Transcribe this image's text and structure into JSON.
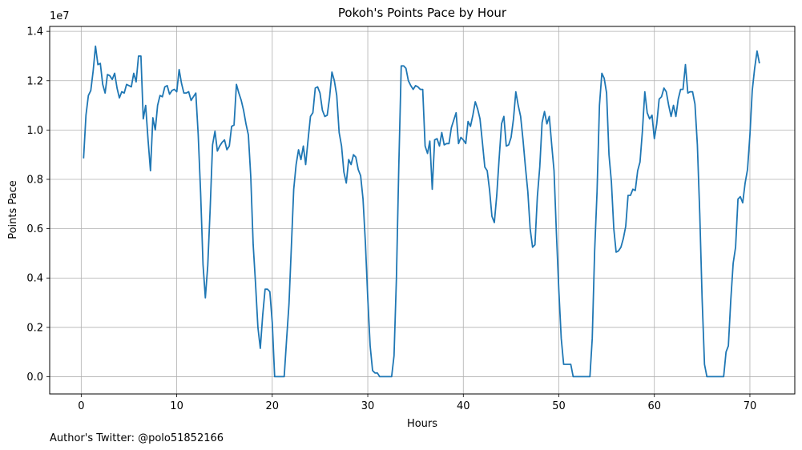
{
  "chart_data": {
    "type": "line",
    "title": "Pokoh's Points Pace by Hour",
    "xlabel": "Hours",
    "ylabel": "Points Pace",
    "y_offset_label": "1e7",
    "xlim": [
      -3.3,
      74.7
    ],
    "ylim": [
      -0.7,
      14.2
    ],
    "y_units": "1e7",
    "xticks": [
      0,
      10,
      20,
      30,
      40,
      50,
      60,
      70
    ],
    "yticks": [
      0.0,
      0.2,
      0.4,
      0.6,
      0.8,
      1.0,
      1.2,
      1.4
    ],
    "ytick_labels": [
      "0.0",
      "0.2",
      "0.4",
      "0.6",
      "0.8",
      "1.0",
      "1.2",
      "1.4"
    ],
    "grid": true,
    "series": [
      {
        "color": "#1f77b4",
        "points": [
          [
            0.25,
            8.85
          ],
          [
            0.5,
            10.6
          ],
          [
            0.75,
            11.4
          ],
          [
            1.0,
            11.6
          ],
          [
            1.25,
            12.4
          ],
          [
            1.5,
            13.4
          ],
          [
            1.75,
            12.65
          ],
          [
            2.0,
            12.7
          ],
          [
            2.25,
            11.85
          ],
          [
            2.5,
            11.5
          ],
          [
            2.75,
            12.25
          ],
          [
            3.0,
            12.2
          ],
          [
            3.25,
            12.05
          ],
          [
            3.5,
            12.3
          ],
          [
            3.75,
            11.7
          ],
          [
            4.0,
            11.3
          ],
          [
            4.25,
            11.55
          ],
          [
            4.5,
            11.5
          ],
          [
            4.75,
            11.85
          ],
          [
            5.0,
            11.8
          ],
          [
            5.25,
            11.75
          ],
          [
            5.5,
            12.3
          ],
          [
            5.75,
            11.95
          ],
          [
            6.0,
            13.0
          ],
          [
            6.25,
            13.0
          ],
          [
            6.5,
            10.45
          ],
          [
            6.75,
            11.0
          ],
          [
            7.0,
            9.6
          ],
          [
            7.25,
            8.35
          ],
          [
            7.5,
            10.5
          ],
          [
            7.75,
            10.0
          ],
          [
            8.0,
            11.0
          ],
          [
            8.25,
            11.4
          ],
          [
            8.5,
            11.35
          ],
          [
            8.75,
            11.75
          ],
          [
            9.0,
            11.8
          ],
          [
            9.25,
            11.45
          ],
          [
            9.5,
            11.6
          ],
          [
            9.75,
            11.65
          ],
          [
            10.0,
            11.55
          ],
          [
            10.25,
            12.45
          ],
          [
            10.5,
            11.9
          ],
          [
            10.75,
            11.5
          ],
          [
            11.0,
            11.5
          ],
          [
            11.25,
            11.55
          ],
          [
            11.5,
            11.2
          ],
          [
            11.75,
            11.35
          ],
          [
            12.0,
            11.5
          ],
          [
            12.25,
            9.8
          ],
          [
            12.5,
            7.45
          ],
          [
            12.75,
            4.55
          ],
          [
            13.0,
            3.2
          ],
          [
            13.25,
            4.5
          ],
          [
            13.5,
            6.8
          ],
          [
            13.75,
            9.4
          ],
          [
            14.0,
            9.95
          ],
          [
            14.25,
            9.15
          ],
          [
            14.5,
            9.35
          ],
          [
            14.75,
            9.5
          ],
          [
            15.0,
            9.6
          ],
          [
            15.25,
            9.2
          ],
          [
            15.5,
            9.35
          ],
          [
            15.75,
            10.15
          ],
          [
            16.0,
            10.2
          ],
          [
            16.25,
            11.85
          ],
          [
            16.5,
            11.5
          ],
          [
            16.75,
            11.2
          ],
          [
            17.0,
            10.8
          ],
          [
            17.25,
            10.25
          ],
          [
            17.5,
            9.8
          ],
          [
            17.75,
            8.1
          ],
          [
            18.0,
            5.35
          ],
          [
            18.25,
            3.8
          ],
          [
            18.5,
            2.0
          ],
          [
            18.75,
            1.15
          ],
          [
            19.0,
            2.5
          ],
          [
            19.25,
            3.55
          ],
          [
            19.5,
            3.55
          ],
          [
            19.75,
            3.45
          ],
          [
            20.0,
            2.2
          ],
          [
            20.25,
            0.0
          ],
          [
            20.5,
            0.0
          ],
          [
            20.75,
            0.0
          ],
          [
            21.0,
            0.0
          ],
          [
            21.25,
            0.0
          ],
          [
            21.5,
            1.5
          ],
          [
            21.75,
            2.95
          ],
          [
            22.0,
            5.3
          ],
          [
            22.25,
            7.6
          ],
          [
            22.5,
            8.6
          ],
          [
            22.75,
            9.2
          ],
          [
            23.0,
            8.8
          ],
          [
            23.25,
            9.35
          ],
          [
            23.5,
            8.6
          ],
          [
            23.75,
            9.6
          ],
          [
            24.0,
            10.55
          ],
          [
            24.25,
            10.7
          ],
          [
            24.5,
            11.7
          ],
          [
            24.75,
            11.75
          ],
          [
            25.0,
            11.5
          ],
          [
            25.25,
            10.8
          ],
          [
            25.5,
            10.55
          ],
          [
            25.75,
            10.6
          ],
          [
            26.0,
            11.3
          ],
          [
            26.25,
            12.35
          ],
          [
            26.5,
            12.0
          ],
          [
            26.75,
            11.4
          ],
          [
            27.0,
            9.9
          ],
          [
            27.25,
            9.35
          ],
          [
            27.5,
            8.3
          ],
          [
            27.75,
            7.85
          ],
          [
            28.0,
            8.8
          ],
          [
            28.25,
            8.6
          ],
          [
            28.5,
            9.0
          ],
          [
            28.75,
            8.9
          ],
          [
            29.0,
            8.4
          ],
          [
            29.25,
            8.15
          ],
          [
            29.5,
            7.2
          ],
          [
            29.75,
            5.4
          ],
          [
            30.0,
            3.2
          ],
          [
            30.25,
            1.25
          ],
          [
            30.5,
            0.25
          ],
          [
            30.75,
            0.15
          ],
          [
            31.0,
            0.15
          ],
          [
            31.25,
            0.0
          ],
          [
            31.5,
            0.0
          ],
          [
            31.75,
            0.0
          ],
          [
            32.0,
            0.0
          ],
          [
            32.25,
            0.0
          ],
          [
            32.5,
            0.0
          ],
          [
            32.75,
            0.85
          ],
          [
            33.0,
            4.0
          ],
          [
            33.25,
            8.6
          ],
          [
            33.5,
            12.6
          ],
          [
            33.75,
            12.6
          ],
          [
            34.0,
            12.5
          ],
          [
            34.25,
            12.0
          ],
          [
            34.5,
            11.8
          ],
          [
            34.75,
            11.65
          ],
          [
            35.0,
            11.8
          ],
          [
            35.25,
            11.75
          ],
          [
            35.5,
            11.65
          ],
          [
            35.75,
            11.65
          ],
          [
            36.0,
            9.35
          ],
          [
            36.25,
            9.05
          ],
          [
            36.5,
            9.55
          ],
          [
            36.75,
            7.6
          ],
          [
            37.0,
            9.6
          ],
          [
            37.25,
            9.65
          ],
          [
            37.5,
            9.35
          ],
          [
            37.75,
            9.9
          ],
          [
            38.0,
            9.4
          ],
          [
            38.25,
            9.45
          ],
          [
            38.5,
            9.45
          ],
          [
            38.75,
            10.1
          ],
          [
            39.0,
            10.4
          ],
          [
            39.25,
            10.7
          ],
          [
            39.5,
            9.45
          ],
          [
            39.75,
            9.7
          ],
          [
            40.0,
            9.6
          ],
          [
            40.25,
            9.45
          ],
          [
            40.5,
            10.35
          ],
          [
            40.75,
            10.15
          ],
          [
            41.0,
            10.6
          ],
          [
            41.25,
            11.15
          ],
          [
            41.5,
            10.85
          ],
          [
            41.75,
            10.45
          ],
          [
            42.0,
            9.5
          ],
          [
            42.25,
            8.5
          ],
          [
            42.5,
            8.35
          ],
          [
            42.75,
            7.55
          ],
          [
            43.0,
            6.5
          ],
          [
            43.25,
            6.25
          ],
          [
            43.5,
            7.35
          ],
          [
            43.75,
            8.85
          ],
          [
            44.0,
            10.25
          ],
          [
            44.25,
            10.55
          ],
          [
            44.5,
            9.35
          ],
          [
            44.75,
            9.4
          ],
          [
            45.0,
            9.7
          ],
          [
            45.25,
            10.45
          ],
          [
            45.5,
            11.55
          ],
          [
            45.75,
            11.0
          ],
          [
            46.0,
            10.55
          ],
          [
            46.25,
            9.6
          ],
          [
            46.5,
            8.5
          ],
          [
            46.75,
            7.5
          ],
          [
            47.0,
            6.0
          ],
          [
            47.25,
            5.25
          ],
          [
            47.5,
            5.35
          ],
          [
            47.75,
            7.3
          ],
          [
            48.0,
            8.5
          ],
          [
            48.25,
            10.3
          ],
          [
            48.5,
            10.75
          ],
          [
            48.75,
            10.25
          ],
          [
            49.0,
            10.55
          ],
          [
            49.25,
            9.4
          ],
          [
            49.5,
            8.35
          ],
          [
            49.75,
            5.8
          ],
          [
            50.0,
            3.5
          ],
          [
            50.25,
            1.55
          ],
          [
            50.5,
            0.5
          ],
          [
            50.75,
            0.5
          ],
          [
            51.0,
            0.5
          ],
          [
            51.25,
            0.5
          ],
          [
            51.5,
            0.0
          ],
          [
            51.75,
            0.0
          ],
          [
            52.0,
            0.0
          ],
          [
            52.25,
            0.0
          ],
          [
            52.5,
            0.0
          ],
          [
            52.75,
            0.0
          ],
          [
            53.0,
            0.0
          ],
          [
            53.25,
            0.0
          ],
          [
            53.5,
            1.55
          ],
          [
            53.75,
            5.1
          ],
          [
            54.0,
            7.5
          ],
          [
            54.25,
            11.0
          ],
          [
            54.5,
            12.3
          ],
          [
            54.75,
            12.1
          ],
          [
            55.0,
            11.5
          ],
          [
            55.25,
            9.0
          ],
          [
            55.5,
            7.9
          ],
          [
            55.75,
            6.0
          ],
          [
            56.0,
            5.05
          ],
          [
            56.25,
            5.1
          ],
          [
            56.5,
            5.25
          ],
          [
            56.75,
            5.6
          ],
          [
            57.0,
            6.1
          ],
          [
            57.25,
            7.35
          ],
          [
            57.5,
            7.35
          ],
          [
            57.75,
            7.6
          ],
          [
            58.0,
            7.55
          ],
          [
            58.25,
            8.35
          ],
          [
            58.5,
            8.7
          ],
          [
            58.75,
            9.95
          ],
          [
            59.0,
            11.55
          ],
          [
            59.25,
            10.7
          ],
          [
            59.5,
            10.45
          ],
          [
            59.75,
            10.6
          ],
          [
            60.0,
            9.65
          ],
          [
            60.25,
            10.25
          ],
          [
            60.5,
            11.25
          ],
          [
            60.75,
            11.35
          ],
          [
            61.0,
            11.7
          ],
          [
            61.25,
            11.55
          ],
          [
            61.5,
            11.0
          ],
          [
            61.75,
            10.55
          ],
          [
            62.0,
            11.0
          ],
          [
            62.25,
            10.55
          ],
          [
            62.5,
            11.25
          ],
          [
            62.75,
            11.65
          ],
          [
            63.0,
            11.65
          ],
          [
            63.25,
            12.65
          ],
          [
            63.5,
            11.5
          ],
          [
            63.75,
            11.55
          ],
          [
            64.0,
            11.55
          ],
          [
            64.25,
            11.05
          ],
          [
            64.5,
            9.4
          ],
          [
            64.75,
            6.6
          ],
          [
            65.0,
            3.2
          ],
          [
            65.25,
            0.5
          ],
          [
            65.5,
            0.0
          ],
          [
            65.75,
            0.0
          ],
          [
            66.0,
            0.0
          ],
          [
            66.25,
            0.0
          ],
          [
            66.5,
            0.0
          ],
          [
            66.75,
            0.0
          ],
          [
            67.0,
            0.0
          ],
          [
            67.25,
            0.0
          ],
          [
            67.5,
            1.0
          ],
          [
            67.75,
            1.25
          ],
          [
            68.0,
            3.1
          ],
          [
            68.25,
            4.6
          ],
          [
            68.5,
            5.25
          ],
          [
            68.75,
            7.2
          ],
          [
            69.0,
            7.3
          ],
          [
            69.25,
            7.05
          ],
          [
            69.5,
            7.85
          ],
          [
            69.75,
            8.4
          ],
          [
            70.0,
            9.8
          ],
          [
            70.25,
            11.6
          ],
          [
            70.5,
            12.5
          ],
          [
            70.75,
            13.2
          ],
          [
            71.0,
            12.7
          ]
        ]
      }
    ]
  },
  "footnote": "Author's Twitter: @polo51852166"
}
